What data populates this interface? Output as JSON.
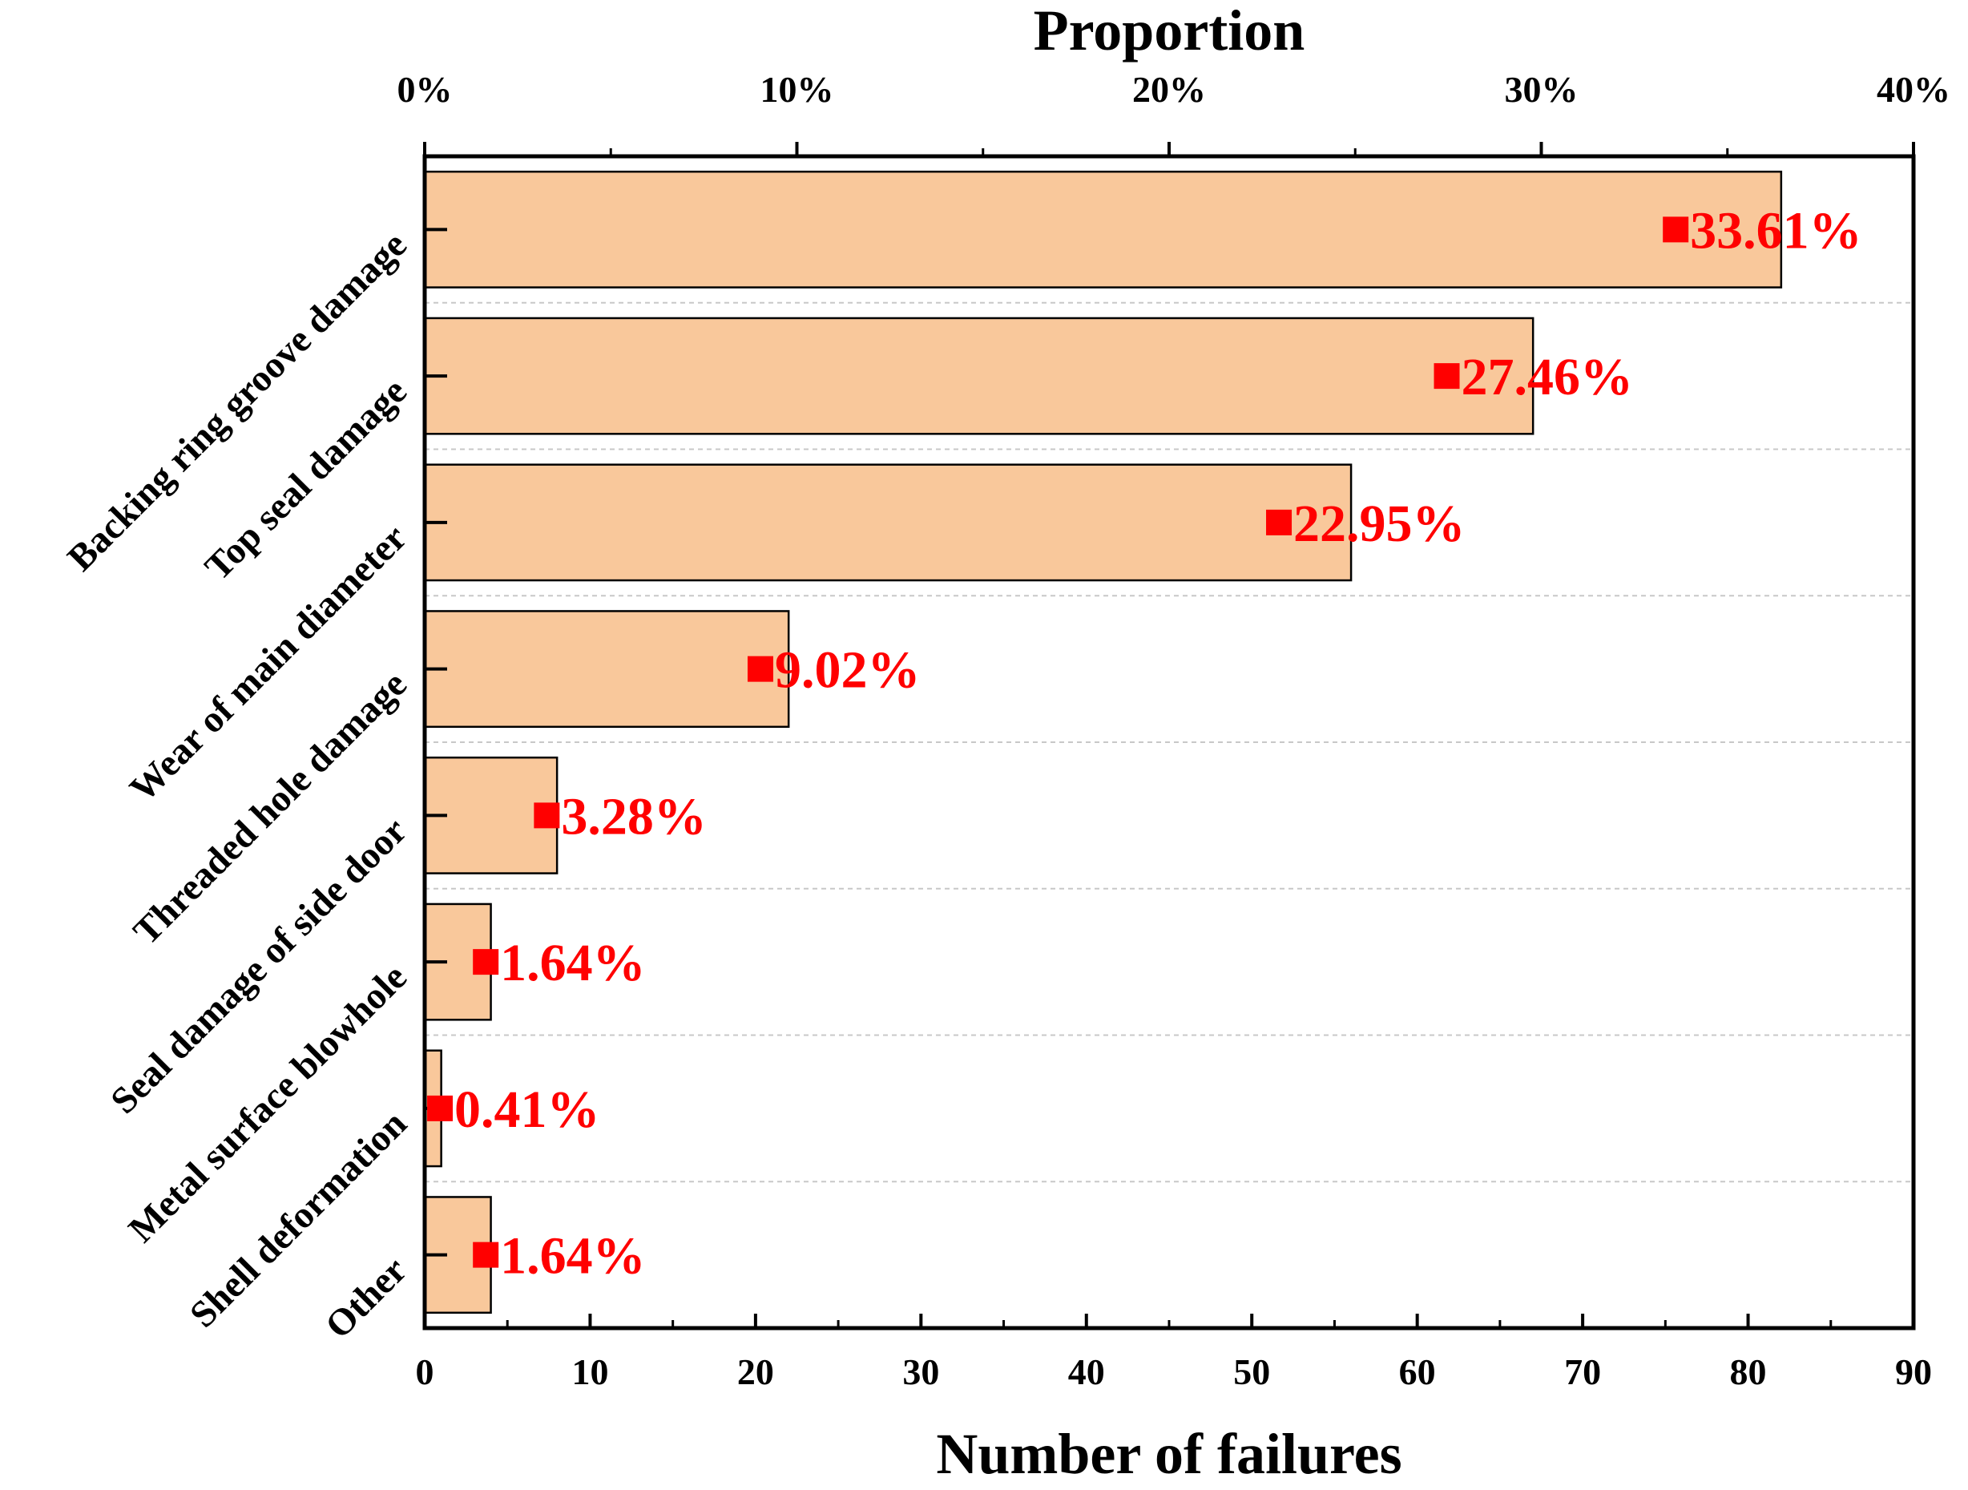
{
  "chart_data": {
    "type": "bar",
    "orientation": "horizontal",
    "top_axis_title": "Proportion",
    "xlabel": "Number of failures",
    "categories": [
      "Backing ring groove damage",
      "Top seal damage",
      "Wear of main diameter",
      "Threaded hole damage",
      "Seal damage of side door",
      "Metal surface blowhole",
      "Shell deformation",
      "Other"
    ],
    "series": [
      {
        "name": "Number of failures",
        "values": [
          82,
          67,
          56,
          22,
          8,
          4,
          1,
          4
        ]
      },
      {
        "name": "Proportion",
        "values": [
          33.61,
          27.46,
          22.95,
          9.02,
          3.28,
          1.64,
          0.41,
          1.64
        ]
      }
    ],
    "percent_labels": [
      "33.61%",
      "27.46%",
      "22.95%",
      "9.02%",
      "3.28%",
      "1.64%",
      "0.41%",
      "1.64%"
    ],
    "xlim": [
      0,
      90
    ],
    "bottom_ticks": [
      "0",
      "10",
      "20",
      "30",
      "40",
      "50",
      "60",
      "70",
      "80",
      "90"
    ],
    "top_xlim": [
      0,
      40
    ],
    "top_ticks": [
      "0%",
      "10%",
      "20%",
      "30%",
      "40%"
    ],
    "grid": "horizontal dashed",
    "colors": {
      "bar_fill": "#f9c89b",
      "bar_edge": "#000000",
      "marker": "#ff0000",
      "label": "#ff0000",
      "grid": "#c8c8c8"
    }
  }
}
